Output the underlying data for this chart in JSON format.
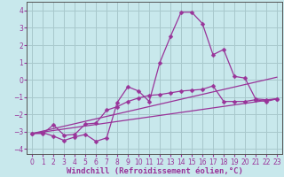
{
  "xlabel": "Windchill (Refroidissement éolien,°C)",
  "background_color": "#c8e8ec",
  "grid_color": "#a8c8cc",
  "line_color": "#993399",
  "xlim": [
    -0.5,
    23.5
  ],
  "ylim": [
    -4.3,
    4.5
  ],
  "xticks": [
    0,
    1,
    2,
    3,
    4,
    5,
    6,
    7,
    8,
    9,
    10,
    11,
    12,
    13,
    14,
    15,
    16,
    17,
    18,
    19,
    20,
    21,
    22,
    23
  ],
  "yticks": [
    -4,
    -3,
    -2,
    -1,
    0,
    1,
    2,
    3,
    4
  ],
  "series1_x": [
    0,
    1,
    2,
    3,
    4,
    5,
    6,
    7,
    8,
    9,
    10,
    11,
    12,
    13,
    14,
    15,
    16,
    17,
    18,
    19,
    20,
    21,
    22,
    23
  ],
  "series1_y": [
    -3.1,
    -3.05,
    -3.25,
    -3.5,
    -3.3,
    -3.15,
    -3.55,
    -3.35,
    -1.3,
    -0.4,
    -0.65,
    -1.25,
    1.0,
    2.5,
    3.9,
    3.9,
    3.25,
    1.45,
    1.75,
    0.2,
    0.1,
    -1.1,
    -1.15,
    -1.1
  ],
  "series2_x": [
    0,
    1,
    2,
    3,
    4,
    5,
    6,
    7,
    8,
    9,
    10,
    11,
    12,
    13,
    14,
    15,
    16,
    17,
    18,
    19,
    20,
    21,
    22,
    23
  ],
  "series2_y": [
    -3.1,
    -3.1,
    -2.6,
    -3.2,
    -3.15,
    -2.55,
    -2.5,
    -1.75,
    -1.55,
    -1.25,
    -1.05,
    -0.9,
    -0.85,
    -0.75,
    -0.65,
    -0.6,
    -0.55,
    -0.35,
    -1.25,
    -1.25,
    -1.25,
    -1.15,
    -1.25,
    -1.1
  ],
  "series3_x": [
    0,
    23
  ],
  "series3_y": [
    -3.1,
    0.15
  ],
  "series4_x": [
    0,
    23
  ],
  "series4_y": [
    -3.1,
    -1.1
  ],
  "marker": "D",
  "marker_size": 2.5,
  "linewidth": 0.9,
  "tick_fontsize": 5.5,
  "label_fontsize": 6.5,
  "spine_color": "#555555"
}
